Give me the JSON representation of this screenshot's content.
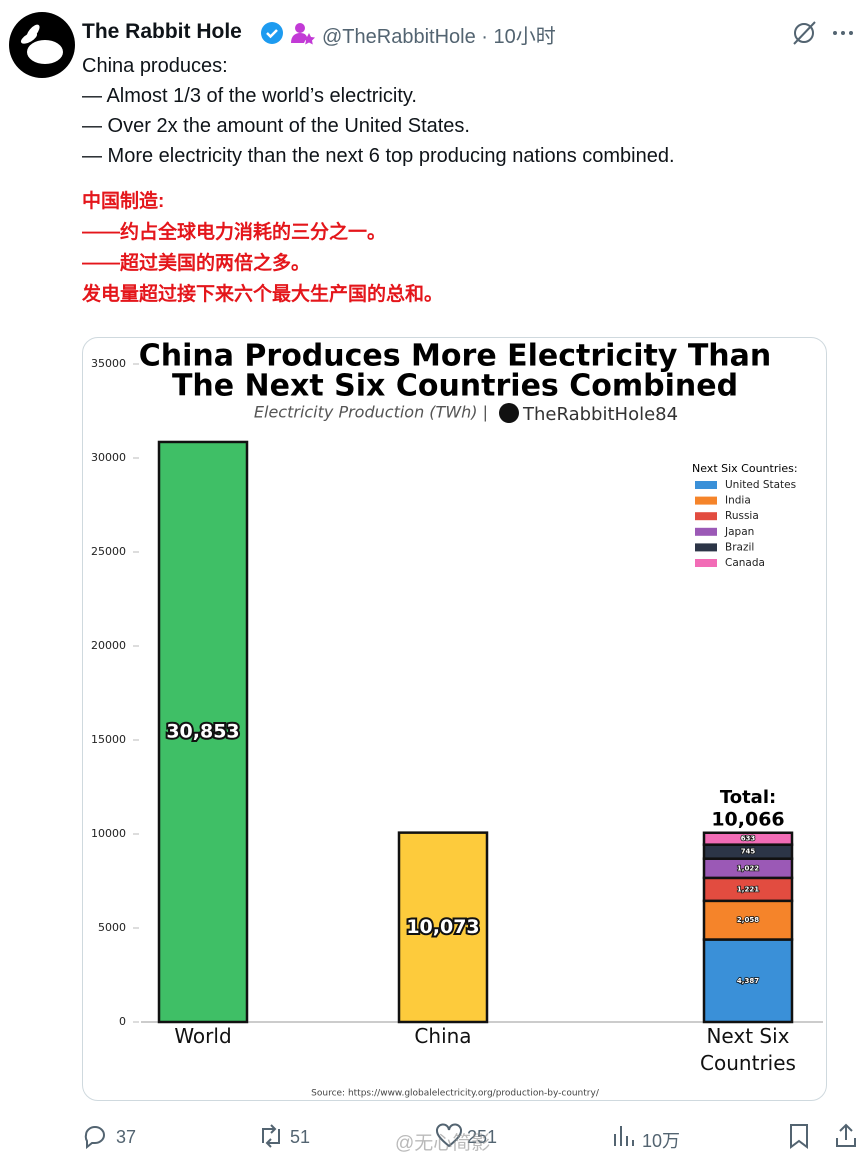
{
  "tweet": {
    "author": "The Rabbit Hole",
    "handle_time": "@TheRabbitHole · 10小时",
    "text": [
      "China produces:",
      "—  Almost 1/3 of the world’s electricity.",
      "— Over 2x the amount of the United States.",
      "— More electricity than the next 6 top producing nations combined."
    ],
    "translation": [
      "中国制造:",
      "——约占全球电力消耗的三分之一。",
      "——超过美国的两倍之多。",
      "发电量超过接下来六个最大生产国的总和。"
    ],
    "replies": 37,
    "reposts": 51,
    "likes": 251,
    "views": "10万",
    "watermark": "@无心简影"
  },
  "chart_data": {
    "type": "stacked_bar",
    "title": [
      "China Produces More Electricity Than",
      "The Next Six Countries Combined"
    ],
    "subtitle": "Electricity Production (TWh) |",
    "brand": "TheRabbitHole84",
    "source": "Source: https://www.globalelectricity.org/production-by-country/",
    "categories": [
      "World",
      "China",
      "Next Six Countries"
    ],
    "series": [
      {
        "color": "#3fbf66",
        "values": [
          30853,
          null,
          null
        ],
        "value_labels": [
          "30,853",
          null,
          null
        ]
      },
      {
        "color": "#fdcb3c",
        "values": [
          null,
          10073,
          null
        ],
        "value_labels": [
          null,
          "10,073",
          null
        ]
      },
      {
        "name": "United States",
        "color": "#3a90d8",
        "values": [
          null,
          null,
          4387
        ],
        "value_labels": [
          null,
          null,
          "4,387"
        ]
      },
      {
        "name": "India",
        "color": "#f5842a",
        "values": [
          null,
          null,
          2058
        ],
        "value_labels": [
          null,
          null,
          "2,058"
        ]
      },
      {
        "name": "Russia",
        "color": "#e24c40",
        "values": [
          null,
          null,
          1221
        ],
        "value_labels": [
          null,
          null,
          "1,221"
        ]
      },
      {
        "name": "Japan",
        "color": "#9b59b6",
        "values": [
          null,
          null,
          1022
        ],
        "value_labels": [
          null,
          null,
          "1,022"
        ]
      },
      {
        "name": "Brazil",
        "color": "#2c3547",
        "values": [
          null,
          null,
          745
        ],
        "value_labels": [
          null,
          null,
          "745"
        ]
      },
      {
        "name": "Canada",
        "color": "#f26cb6",
        "values": [
          null,
          null,
          633
        ],
        "value_labels": [
          null,
          null,
          "633"
        ]
      }
    ],
    "legend_title": "Next Six Countries:",
    "annotations": [
      "Total:",
      "10,066"
    ],
    "ylim": [
      0,
      35000
    ],
    "yticks": [
      0,
      5000,
      10000,
      15000,
      20000,
      25000,
      30000,
      35000
    ],
    "grid": false
  }
}
